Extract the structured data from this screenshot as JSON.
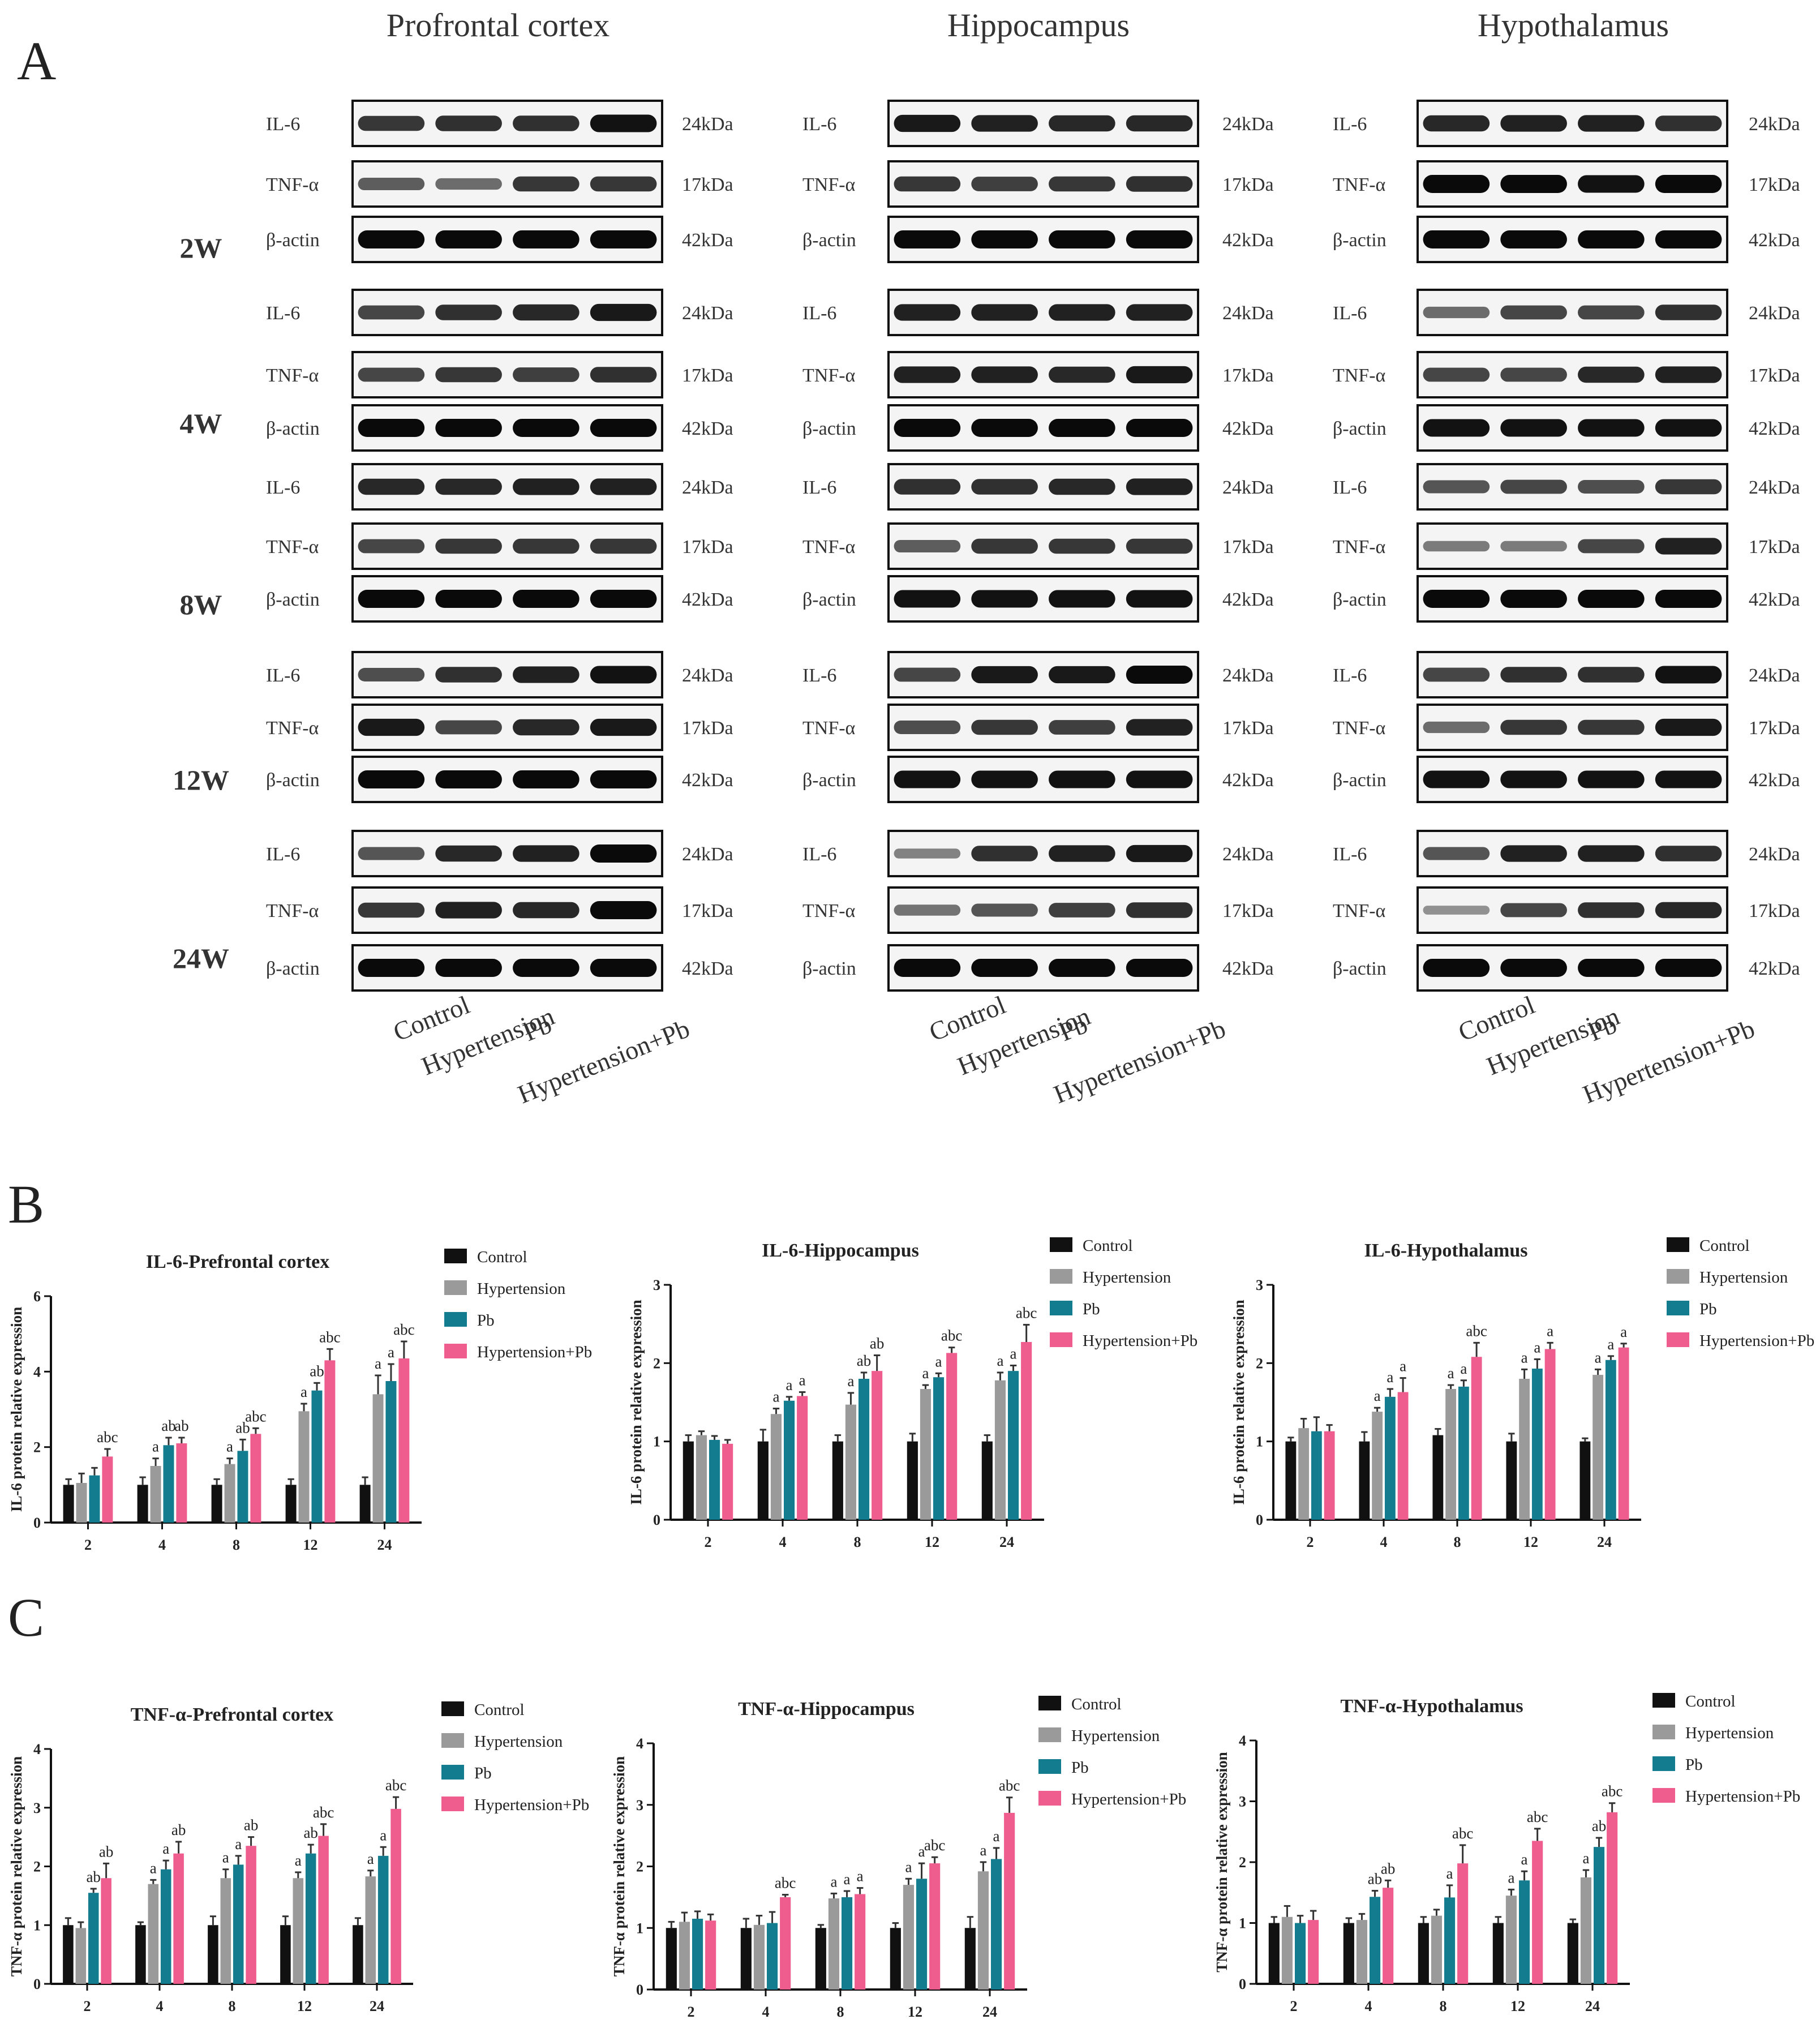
{
  "panel_labels": {
    "a": "A",
    "b": "B",
    "c": "C"
  },
  "blot": {
    "regions": [
      "Profrontal  cortex",
      "Hippocampus",
      "Hypothalamus"
    ],
    "timepoints": [
      "2W",
      "4W",
      "8W",
      "12W",
      "24W"
    ],
    "proteins": [
      "IL-6",
      "TNF-α",
      "β-actin"
    ],
    "sizes": [
      "24kDa",
      "17kDa",
      "42kDa"
    ],
    "groups": [
      "Control",
      "Hypertension",
      "Pb",
      "Hypertension+Pb"
    ]
  },
  "colors": {
    "Control": "#111111",
    "Hypertension": "#9a9a9a",
    "Pb": "#137c8f",
    "Hypertension+Pb": "#ef5d8e"
  },
  "legend": [
    "Control",
    "Hypertension",
    "Pb",
    "Hypertension+Pb"
  ],
  "chart_data": [
    {
      "type": "bar",
      "title": "IL-6-Prefrontal cortex",
      "ylabel": "IL-6 protein relative expression",
      "xlabel": "",
      "categories": [
        "2",
        "4",
        "8",
        "12",
        "24"
      ],
      "ylim": [
        0,
        6
      ],
      "yticks": [
        0,
        2,
        4,
        6
      ],
      "series": [
        {
          "name": "Control",
          "values": [
            1.0,
            1.0,
            1.0,
            1.0,
            1.0
          ],
          "errors": [
            0.15,
            0.2,
            0.15,
            0.15,
            0.2
          ],
          "labels": [
            "",
            "",
            "",
            "",
            ""
          ]
        },
        {
          "name": "Hypertension",
          "values": [
            1.05,
            1.5,
            1.55,
            2.95,
            3.4
          ],
          "errors": [
            0.25,
            0.2,
            0.15,
            0.2,
            0.5
          ],
          "labels": [
            "",
            "a",
            "a",
            "a",
            "a"
          ]
        },
        {
          "name": "Pb",
          "values": [
            1.25,
            2.05,
            1.9,
            3.5,
            3.75
          ],
          "errors": [
            0.2,
            0.2,
            0.3,
            0.2,
            0.45
          ],
          "labels": [
            "",
            "ab",
            "ab",
            "ab",
            "a"
          ]
        },
        {
          "name": "Hypertension+Pb",
          "values": [
            1.75,
            2.1,
            2.35,
            4.3,
            4.35
          ],
          "errors": [
            0.2,
            0.15,
            0.15,
            0.3,
            0.45
          ],
          "labels": [
            "abc",
            "ab",
            "abc",
            "abc",
            "abc"
          ]
        }
      ]
    },
    {
      "type": "bar",
      "title": "IL-6-Hippocampus",
      "ylabel": "IL-6 protein relative expression",
      "xlabel": "",
      "categories": [
        "2",
        "4",
        "8",
        "12",
        "24"
      ],
      "ylim": [
        0,
        3
      ],
      "yticks": [
        0,
        1,
        2,
        3
      ],
      "series": [
        {
          "name": "Control",
          "values": [
            1.0,
            1.0,
            1.0,
            1.0,
            1.0
          ],
          "errors": [
            0.08,
            0.15,
            0.08,
            0.1,
            0.08
          ],
          "labels": [
            "",
            "",
            "",
            "",
            ""
          ]
        },
        {
          "name": "Hypertension",
          "values": [
            1.08,
            1.35,
            1.47,
            1.67,
            1.78
          ],
          "errors": [
            0.05,
            0.07,
            0.15,
            0.05,
            0.1
          ],
          "labels": [
            "",
            "a",
            "a",
            "a",
            "a"
          ]
        },
        {
          "name": "Pb",
          "values": [
            1.02,
            1.52,
            1.8,
            1.82,
            1.9
          ],
          "errors": [
            0.05,
            0.05,
            0.08,
            0.05,
            0.07
          ],
          "labels": [
            "",
            "a",
            "ab",
            "a",
            "a"
          ]
        },
        {
          "name": "Hypertension+Pb",
          "values": [
            0.97,
            1.58,
            1.9,
            2.13,
            2.27
          ],
          "errors": [
            0.05,
            0.05,
            0.2,
            0.07,
            0.22
          ],
          "labels": [
            "",
            "a",
            "ab",
            "abc",
            "abc"
          ]
        }
      ]
    },
    {
      "type": "bar",
      "title": "IL-6-Hypothalamus",
      "ylabel": "IL-6 protein relative expression",
      "xlabel": "",
      "categories": [
        "2",
        "4",
        "8",
        "12",
        "24"
      ],
      "ylim": [
        0,
        3
      ],
      "yticks": [
        0,
        1,
        2,
        3
      ],
      "series": [
        {
          "name": "Control",
          "values": [
            1.0,
            1.0,
            1.08,
            1.0,
            1.0
          ],
          "errors": [
            0.05,
            0.12,
            0.08,
            0.1,
            0.04
          ],
          "labels": [
            "",
            "",
            "",
            "",
            ""
          ]
        },
        {
          "name": "Hypertension",
          "values": [
            1.17,
            1.38,
            1.67,
            1.8,
            1.85
          ],
          "errors": [
            0.12,
            0.05,
            0.05,
            0.12,
            0.07
          ],
          "labels": [
            "",
            "a",
            "a",
            "a",
            "a"
          ]
        },
        {
          "name": "Pb",
          "values": [
            1.13,
            1.57,
            1.7,
            1.93,
            2.04
          ],
          "errors": [
            0.18,
            0.1,
            0.08,
            0.12,
            0.05
          ],
          "labels": [
            "",
            "a",
            "a",
            "a",
            "a"
          ]
        },
        {
          "name": "Hypertension+Pb",
          "values": [
            1.13,
            1.63,
            2.08,
            2.18,
            2.2
          ],
          "errors": [
            0.08,
            0.18,
            0.18,
            0.08,
            0.05
          ],
          "labels": [
            "",
            "a",
            "abc",
            "a",
            "a"
          ]
        }
      ]
    },
    {
      "type": "bar",
      "title": "TNF-α-Prefrontal cortex",
      "ylabel": "TNF-α protein relative expression",
      "xlabel": "",
      "categories": [
        "2",
        "4",
        "8",
        "12",
        "24"
      ],
      "ylim": [
        0,
        4
      ],
      "yticks": [
        0,
        1,
        2,
        3,
        4
      ],
      "series": [
        {
          "name": "Control",
          "values": [
            1.0,
            1.0,
            1.0,
            1.0,
            1.0
          ],
          "errors": [
            0.12,
            0.05,
            0.15,
            0.15,
            0.12
          ],
          "labels": [
            "",
            "",
            "",
            "",
            ""
          ]
        },
        {
          "name": "Hypertension",
          "values": [
            0.95,
            1.7,
            1.8,
            1.8,
            1.83
          ],
          "errors": [
            0.1,
            0.07,
            0.15,
            0.1,
            0.1
          ],
          "labels": [
            "",
            "a",
            "a",
            "a",
            "a"
          ]
        },
        {
          "name": "Pb",
          "values": [
            1.55,
            1.95,
            2.03,
            2.22,
            2.18
          ],
          "errors": [
            0.07,
            0.15,
            0.15,
            0.15,
            0.15
          ],
          "labels": [
            "ab",
            "a",
            "a",
            "ab",
            "a"
          ]
        },
        {
          "name": "Hypertension+Pb",
          "values": [
            1.8,
            2.22,
            2.35,
            2.52,
            2.98
          ],
          "errors": [
            0.25,
            0.2,
            0.15,
            0.2,
            0.2
          ],
          "labels": [
            "ab",
            "ab",
            "ab",
            "abc",
            "abc"
          ]
        }
      ]
    },
    {
      "type": "bar",
      "title": "TNF-α-Hippocampus",
      "ylabel": "TNF-α protein relative expression",
      "xlabel": "",
      "categories": [
        "2",
        "4",
        "8",
        "12",
        "24"
      ],
      "ylim": [
        0,
        4
      ],
      "yticks": [
        0,
        1,
        2,
        3,
        4
      ],
      "series": [
        {
          "name": "Control",
          "values": [
            1.0,
            1.0,
            1.0,
            1.0,
            1.0
          ],
          "errors": [
            0.1,
            0.15,
            0.05,
            0.08,
            0.18
          ],
          "labels": [
            "",
            "",
            "",
            "",
            ""
          ]
        },
        {
          "name": "Hypertension",
          "values": [
            1.1,
            1.05,
            1.48,
            1.7,
            1.92
          ],
          "errors": [
            0.15,
            0.15,
            0.08,
            0.1,
            0.15
          ],
          "labels": [
            "",
            "",
            "a",
            "a",
            "a"
          ]
        },
        {
          "name": "Pb",
          "values": [
            1.15,
            1.08,
            1.5,
            1.8,
            2.12
          ],
          "errors": [
            0.12,
            0.18,
            0.1,
            0.25,
            0.18
          ],
          "labels": [
            "",
            "",
            "a",
            "a",
            "a"
          ]
        },
        {
          "name": "Hypertension+Pb",
          "values": [
            1.12,
            1.5,
            1.55,
            2.05,
            2.87
          ],
          "errors": [
            0.1,
            0.04,
            0.1,
            0.1,
            0.25
          ],
          "labels": [
            "",
            "abc",
            "a",
            "abc",
            "abc"
          ]
        }
      ]
    },
    {
      "type": "bar",
      "title": "TNF-α-Hypothalamus",
      "ylabel": "TNF-α protein relative expression",
      "xlabel": "",
      "categories": [
        "2",
        "4",
        "8",
        "12",
        "24"
      ],
      "ylim": [
        0,
        4
      ],
      "yticks": [
        0,
        1,
        2,
        3,
        4
      ],
      "series": [
        {
          "name": "Control",
          "values": [
            1.0,
            1.0,
            1.0,
            1.0,
            1.0
          ],
          "errors": [
            0.1,
            0.08,
            0.1,
            0.1,
            0.06
          ],
          "labels": [
            "",
            "",
            "",
            "",
            ""
          ]
        },
        {
          "name": "Hypertension",
          "values": [
            1.1,
            1.05,
            1.12,
            1.45,
            1.75
          ],
          "errors": [
            0.18,
            0.1,
            0.1,
            0.1,
            0.12
          ],
          "labels": [
            "",
            "",
            "",
            "a",
            "a"
          ]
        },
        {
          "name": "Pb",
          "values": [
            1.0,
            1.43,
            1.42,
            1.7,
            2.25
          ],
          "errors": [
            0.12,
            0.1,
            0.2,
            0.15,
            0.15
          ],
          "labels": [
            "",
            "ab",
            "a",
            "a",
            "ab"
          ]
        },
        {
          "name": "Hypertension+Pb",
          "values": [
            1.05,
            1.58,
            1.98,
            2.35,
            2.82
          ],
          "errors": [
            0.15,
            0.12,
            0.3,
            0.2,
            0.15
          ],
          "labels": [
            "",
            "ab",
            "abc",
            "abc",
            "abc"
          ]
        }
      ]
    }
  ]
}
